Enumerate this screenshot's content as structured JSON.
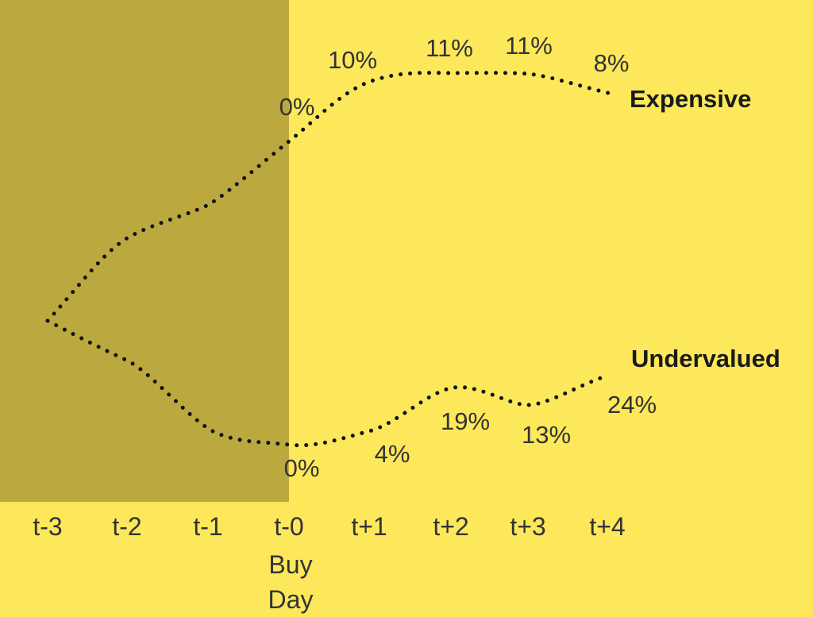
{
  "colors": {
    "background": "#fce85a",
    "history_shade": "#bba940",
    "line": "#111111"
  },
  "chart_data": {
    "type": "line",
    "title": "",
    "xlabel": "",
    "ylabel": "",
    "categories": [
      "t-3",
      "t-2",
      "t-1",
      "t-0",
      "t+1",
      "t+2",
      "t+3",
      "t+4"
    ],
    "buy_day_label": [
      "Buy",
      "Day"
    ],
    "shaded_range": [
      "t-3",
      "t-0"
    ],
    "grid": false,
    "y_axis_shown": false,
    "series": [
      {
        "name": "Expensive",
        "labels": [
          "",
          "",
          "",
          "0%",
          "10%",
          "11%",
          "11%",
          "8%"
        ]
      },
      {
        "name": "Undervalued",
        "labels": [
          "",
          "",
          "",
          "0%",
          "4%",
          "19%",
          "13%",
          "24%"
        ]
      }
    ]
  }
}
